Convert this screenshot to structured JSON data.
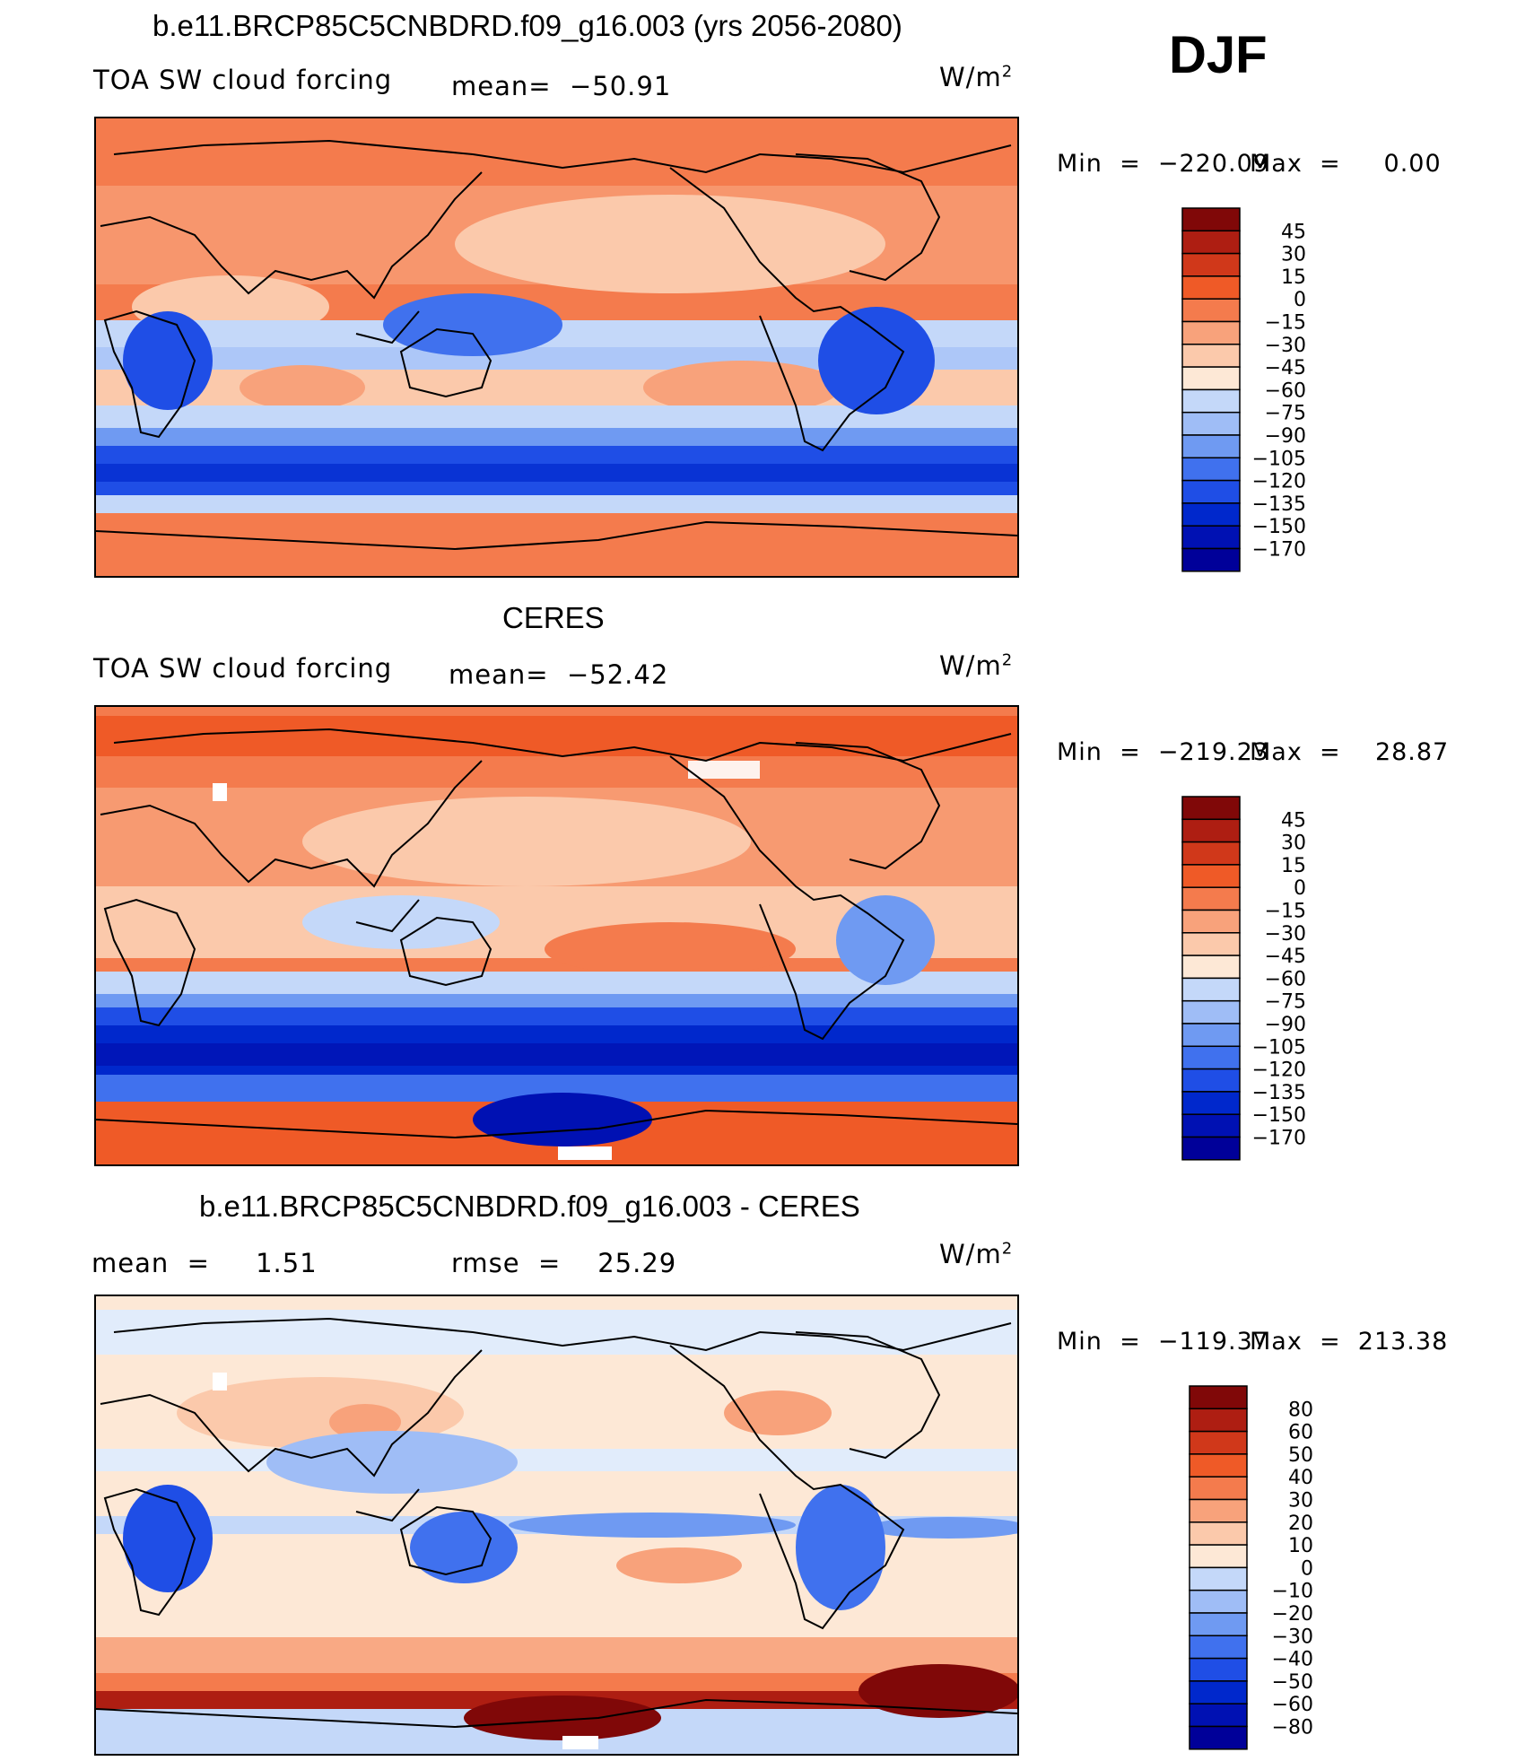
{
  "season": "DJF",
  "units_base": "W/m",
  "units_exp": "2",
  "colors": {
    "scale": [
      "#000099",
      "#0011b3",
      "#0028cc",
      "#1f4ee6",
      "#4071ee",
      "#6f9af2",
      "#9fbdf6",
      "#c4d8f9",
      "#e1ecfb",
      "#fde8d6",
      "#fbc9ab",
      "#f8a27b",
      "#f47b4d",
      "#ef5a27",
      "#d0381a",
      "#ae1e12",
      "#800808"
    ]
  },
  "panels": [
    {
      "title": "b.e11.BRCP85C5CNBDRD.f09_g16.003 (yrs 2056-2080)",
      "left_label": "TOA SW cloud forcing",
      "stat1": "mean=  −50.91",
      "stat2": "",
      "minmax_min": "Min  =  −220.09",
      "minmax_max": "Max  =     0.00"
    },
    {
      "title": "CERES",
      "left_label": "TOA SW cloud forcing",
      "stat1": "mean=  −52.42",
      "stat2": "",
      "minmax_min": "Min  =  −219.23",
      "minmax_max": "Max  =    28.87"
    },
    {
      "title": "b.e11.BRCP85C5CNBDRD.f09_g16.003 - CERES",
      "left_label": "mean  =     1.51",
      "stat1": "rmse  =    25.29",
      "stat2": "",
      "minmax_min": "Min  =  −119.37",
      "minmax_max": "Max  =  213.38"
    }
  ],
  "chart_data": [
    {
      "type": "heatmap",
      "title": "b.e11.BRCP85C5CNBDRD.f09_g16.003 (yrs 2056-2080)",
      "variable": "TOA SW cloud forcing",
      "units": "W/m2",
      "mean": -50.91,
      "min": -220.09,
      "max": 0.0,
      "colorbar_levels": [
        "45",
        "30",
        "15",
        "0",
        "−15",
        "−30",
        "−45",
        "−60",
        "−75",
        "−90",
        "−105",
        "−120",
        "−135",
        "−150",
        "−170"
      ]
    },
    {
      "type": "heatmap",
      "title": "CERES",
      "variable": "TOA SW cloud forcing",
      "units": "W/m2",
      "mean": -52.42,
      "min": -219.23,
      "max": 28.87,
      "colorbar_levels": [
        "45",
        "30",
        "15",
        "0",
        "−15",
        "−30",
        "−45",
        "−60",
        "−75",
        "−90",
        "−105",
        "−120",
        "−135",
        "−150",
        "−170"
      ]
    },
    {
      "type": "heatmap",
      "title": "b.e11.BRCP85C5CNBDRD.f09_g16.003 - CERES",
      "units": "W/m2",
      "mean": 1.51,
      "rmse": 25.29,
      "min": -119.37,
      "max": 213.38,
      "colorbar_levels": [
        "80",
        "60",
        "50",
        "40",
        "30",
        "20",
        "10",
        "0",
        "−10",
        "−20",
        "−30",
        "−40",
        "−50",
        "−60",
        "−80"
      ]
    }
  ]
}
